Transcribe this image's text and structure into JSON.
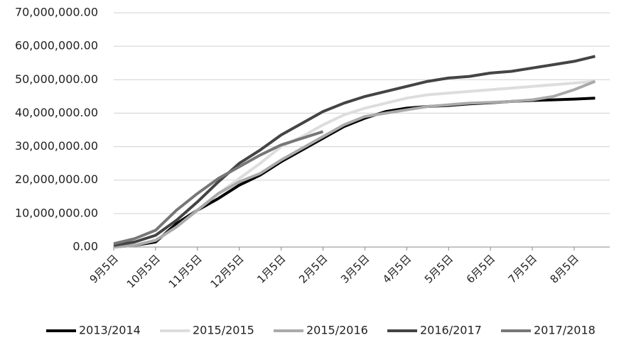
{
  "chart_data": {
    "type": "line",
    "categories": [
      "9月5日",
      null,
      "10月5日",
      null,
      "11月5日",
      null,
      "12月5日",
      null,
      "1月5日",
      null,
      "2月5日",
      null,
      "3月5日",
      null,
      "4月5日",
      null,
      "5月5日",
      null,
      "6月5日",
      null,
      "7月5日",
      null,
      "8月5日",
      null
    ],
    "series": [
      {
        "name": "2013/2014",
        "color": "#000000",
        "values": [
          0,
          0.5,
          1.5,
          7,
          11,
          14.5,
          18.5,
          21.5,
          25.5,
          29,
          32.5,
          36,
          38.5,
          40.5,
          41.5,
          42,
          42.3,
          42.8,
          43.1,
          43.5,
          43.8,
          44,
          44.2,
          44.5
        ]
      },
      {
        "name": "2015/2015",
        "color": "#dddddd",
        "values": [
          0,
          0.5,
          2,
          6,
          11,
          16,
          20.5,
          25,
          30,
          33,
          36.5,
          39.5,
          41.5,
          43,
          44.5,
          45.5,
          46,
          46.5,
          47,
          47.5,
          48,
          48.5,
          49,
          49.5
        ]
      },
      {
        "name": "2015/2016",
        "color": "#aaaaaa",
        "values": [
          0,
          0.5,
          2,
          6,
          11,
          16,
          19.5,
          22,
          26,
          29.5,
          33,
          36.5,
          39,
          40,
          41,
          42,
          42.5,
          43,
          43.2,
          43.5,
          44,
          45,
          47,
          49.5
        ]
      },
      {
        "name": "2016/2017",
        "color": "#444444",
        "values": [
          0.5,
          1.5,
          3.5,
          8,
          13.5,
          19.5,
          25,
          29,
          33.5,
          37,
          40.5,
          43,
          45,
          46.5,
          48,
          49.5,
          50.5,
          51,
          52,
          52.5,
          53.5,
          54.5,
          55.5,
          57
        ]
      },
      {
        "name": "2017/2018",
        "color": "#777777",
        "values": [
          1,
          2.5,
          5,
          11,
          16,
          20.5,
          24,
          27.5,
          30.5,
          32.5,
          34.5,
          null,
          null,
          null,
          null,
          null,
          null,
          null,
          null,
          null,
          null,
          null,
          null,
          null
        ]
      }
    ],
    "ylim": [
      0,
      70
    ],
    "yticks": [
      {
        "value": 0,
        "label": "0.00"
      },
      {
        "value": 10,
        "label": "10,000,000.00"
      },
      {
        "value": 20,
        "label": "20,000,000.00"
      },
      {
        "value": 30,
        "label": "30,000,000.00"
      },
      {
        "value": 40,
        "label": "40,000,000.00"
      },
      {
        "value": 50,
        "label": "50,000,000.00"
      },
      {
        "value": 60,
        "label": "60,000,000.00"
      },
      {
        "value": 70,
        "label": "70,000,000.00"
      }
    ],
    "grid": true
  }
}
